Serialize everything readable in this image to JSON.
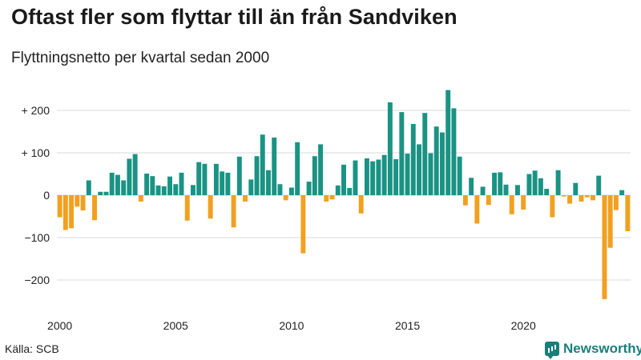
{
  "header": {
    "title": "Oftast fler som flyttar till än från Sandviken",
    "subtitle": "Flyttningsnetto per kvartal sedan 2000"
  },
  "footer": {
    "source": "Källa: SCB",
    "brand": "Newsworthy"
  },
  "colors": {
    "positive": "#1a9384",
    "negative": "#f2a01f",
    "grid": "#d9d9d9",
    "brand": "#1a7f7a"
  },
  "chart_data": {
    "type": "bar",
    "start_year": 2000,
    "periods_per_year": 4,
    "ylim": [
      -250,
      250
    ],
    "y_ticks": [
      {
        "value": 200,
        "label": "+ 200"
      },
      {
        "value": 100,
        "label": "+ 100"
      },
      {
        "value": 0,
        "label": "0"
      },
      {
        "value": -100,
        "label": "−100"
      },
      {
        "value": -200,
        "label": "−200"
      }
    ],
    "x_ticks": [
      {
        "year": 2000,
        "label": "2000"
      },
      {
        "year": 2005,
        "label": "2005"
      },
      {
        "year": 2010,
        "label": "2010"
      },
      {
        "year": 2015,
        "label": "2015"
      },
      {
        "year": 2020,
        "label": "2020"
      }
    ],
    "values": [
      -52,
      -82,
      -78,
      -27,
      -36,
      35,
      -59,
      8,
      8,
      53,
      48,
      35,
      86,
      97,
      -15,
      51,
      45,
      23,
      21,
      44,
      26,
      53,
      -60,
      24,
      78,
      74,
      -55,
      74,
      56,
      53,
      -76,
      91,
      -15,
      37,
      92,
      143,
      59,
      136,
      26,
      -12,
      18,
      125,
      -137,
      32,
      92,
      120,
      -15,
      -10,
      23,
      72,
      17,
      82,
      -43,
      87,
      80,
      84,
      95,
      219,
      85,
      196,
      98,
      168,
      120,
      194,
      99,
      162,
      148,
      248,
      205,
      91,
      -24,
      41,
      -67,
      20,
      -23,
      53,
      54,
      25,
      -45,
      24,
      -34,
      50,
      58,
      40,
      15,
      -52,
      59,
      -3,
      -20,
      29,
      -15,
      -5,
      -12,
      46,
      -245,
      -124,
      -35,
      12,
      -85
    ]
  }
}
